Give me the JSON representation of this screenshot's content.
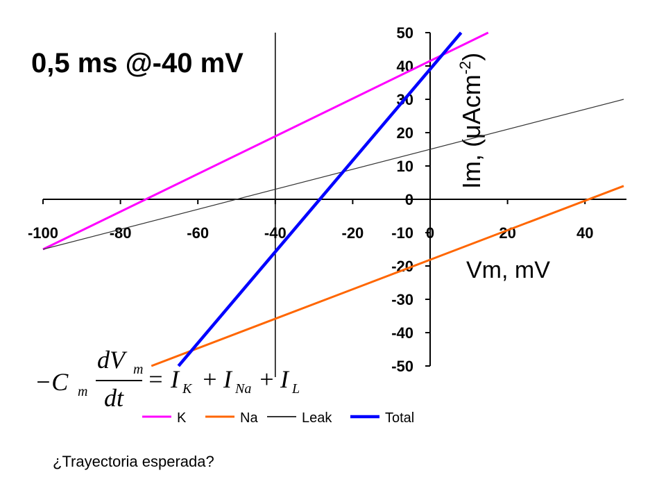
{
  "chart_data": {
    "type": "line",
    "title": "0,5 ms @-40 mV",
    "ylabel": {
      "main": "Im, (μAcm",
      "sup": "-2",
      "end": ")"
    },
    "xlabel": "Vm, mV",
    "xlim": [
      -100,
      50
    ],
    "ylim": [
      -50,
      50
    ],
    "xticks": [
      -100,
      -80,
      -60,
      -40,
      -20,
      0,
      20,
      40
    ],
    "yticks": [
      -50,
      -40,
      -30,
      -20,
      -10,
      0,
      10,
      20,
      30,
      40,
      50
    ],
    "vline": -40,
    "series": [
      {
        "name": "K",
        "color": "#ff00ff",
        "x": [
          -100,
          15
        ],
        "values": [
          -15,
          50
        ]
      },
      {
        "name": "Na",
        "color": "#ff6600",
        "x": [
          -72,
          50
        ],
        "values": [
          -50,
          4
        ]
      },
      {
        "name": "Leak",
        "color": "#333333",
        "x": [
          -100,
          50
        ],
        "values": [
          -15,
          30
        ]
      },
      {
        "name": "Total",
        "color": "#0000ff",
        "x": [
          -65,
          8
        ],
        "values": [
          -50,
          50
        ]
      }
    ],
    "equation": [
      "−C",
      "m",
      "dV",
      "m",
      "dt",
      "=",
      "I",
      "K",
      "+",
      "I",
      "Na",
      "+",
      "I",
      "L"
    ],
    "footer": "¿Trayectoria esperada?"
  }
}
